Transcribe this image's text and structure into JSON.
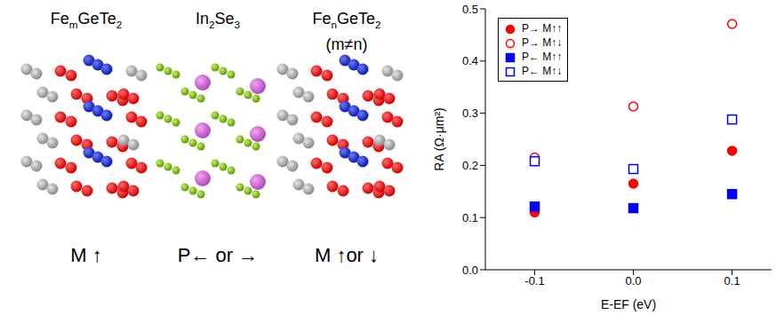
{
  "diagram": {
    "panels": [
      {
        "title": "FemGeTe2",
        "label": "M ↑"
      },
      {
        "title": "In2Se3",
        "label": "P← or →"
      },
      {
        "title": "FenGeTe2",
        "subtitle": "(m≠n)",
        "label": "M ↑or ↓"
      }
    ]
  },
  "chart_data": {
    "type": "scatter",
    "x_label": "E-EF (eV)",
    "y_label": "RA (Ω·μm²)",
    "xlim": [
      -0.15,
      0.14
    ],
    "xticks": [
      -0.1,
      {
        "value": 0,
        "label": "0.0"
      },
      0.1
    ],
    "ylim": [
      0,
      0.5
    ],
    "yticks": [
      {
        "value": 0,
        "label": "0.0"
      },
      0.1,
      0.2,
      0.3,
      0.4,
      0.5
    ],
    "legend": "upper left",
    "x": [
      -0.1,
      0,
      0.1
    ],
    "series": [
      {
        "name": "P→ M↑↑",
        "color": "#ff0000",
        "marker": "filled_circle",
        "values": [
          0.11,
          0.165,
          0.228
        ]
      },
      {
        "name": "P→ M↑↓",
        "color": "#ff0000",
        "marker": "open_circle",
        "values": [
          0.215,
          0.313,
          0.471
        ]
      },
      {
        "name": "P← M↑↑",
        "color": "#0000ff",
        "marker": "filled_square",
        "values": [
          0.121,
          0.118,
          0.145
        ]
      },
      {
        "name": "P← M↑↓",
        "color": "#0000ff",
        "marker": "open_square",
        "values": [
          0.208,
          0.193,
          0.288
        ]
      }
    ]
  }
}
